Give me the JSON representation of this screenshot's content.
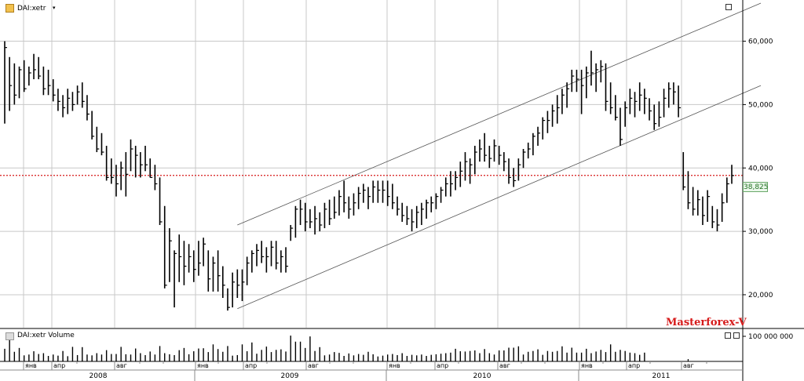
{
  "header": {
    "symbol_label": "DAI:xetr",
    "dropdown_glyph": "▾",
    "volume_label": "DAI:xetr Volume"
  },
  "watermark": "Masterforex-V",
  "last_price_label": "38,825",
  "colors": {
    "price_bar": "#000000",
    "current_price_line": "#d61a1a",
    "channel_line": "#555555",
    "grid": "#c8c8c8",
    "last_price_box": "#eaf7ea",
    "watermark": "#d61a1a"
  },
  "chart_data": {
    "type": "ohlc",
    "y_ticks": [
      "20,000",
      "30,000",
      "40,000",
      "50,000",
      "60,000"
    ],
    "y_tick_values": [
      20000,
      30000,
      40000,
      50000,
      60000
    ],
    "ylim": [
      14800,
      66500
    ],
    "current_price": 38825,
    "volume_axis_label": "100 000 000",
    "x_months": [
      "янв",
      "апр",
      "авг",
      "янв",
      "апр",
      "авг",
      "янв",
      "апр",
      "авг",
      "янв",
      "апр",
      "авг"
    ],
    "x_years": [
      "2008",
      "2009",
      "2010",
      "2011"
    ],
    "volume_series": [
      0.46,
      0.85,
      0.35,
      0.49,
      0.22,
      0.25,
      0.37,
      0.27,
      0.3,
      0.2,
      0.25,
      0.21,
      0.38,
      0.19,
      0.53,
      0.23,
      0.52,
      0.25,
      0.22,
      0.3,
      0.25,
      0.41,
      0.27,
      0.27,
      0.53,
      0.26,
      0.25,
      0.47,
      0.3,
      0.23,
      0.36,
      0.25,
      0.56,
      0.3,
      0.26,
      0.23,
      0.41,
      0.49,
      0.26,
      0.37,
      0.47,
      0.48,
      0.34,
      0.62,
      0.45,
      0.35,
      0.56,
      0.21,
      0.23,
      0.62,
      0.37,
      0.69,
      0.28,
      0.42,
      0.54,
      0.34,
      0.42,
      0.44,
      0.36,
      0.94,
      0.72,
      0.72,
      0.49,
      0.91,
      0.38,
      0.52,
      0.22,
      0.25,
      0.34,
      0.31,
      0.2,
      0.29,
      0.22,
      0.27,
      0.24,
      0.35,
      0.26,
      0.18,
      0.21,
      0.25,
      0.27,
      0.23,
      0.3,
      0.2,
      0.24,
      0.22,
      0.25,
      0.2,
      0.24,
      0.26,
      0.28,
      0.3,
      0.32,
      0.46,
      0.37,
      0.36,
      0.38,
      0.4,
      0.3,
      0.45,
      0.3,
      0.25,
      0.4,
      0.4,
      0.5,
      0.5,
      0.55,
      0.25,
      0.35,
      0.38,
      0.44,
      0.24,
      0.38,
      0.35,
      0.38,
      0.55,
      0.32,
      0.5,
      0.32,
      0.32,
      0.46,
      0.3,
      0.36,
      0.42,
      0.34,
      0.62,
      0.35,
      0.42,
      0.38,
      0.32,
      0.3,
      0.24,
      0.32
    ],
    "channel_lines": [
      {
        "from": [
          "2009-01",
          31000
        ],
        "to": [
          "2011-06",
          66000
        ]
      },
      {
        "from": [
          "2009-01",
          17800
        ],
        "to": [
          "2011-06",
          53000
        ]
      }
    ],
    "channel_pixel_anchor_note": "",
    "ohlc": [
      [
        60000,
        47000,
        59000
      ],
      [
        57500,
        49000,
        53000
      ],
      [
        56500,
        50000,
        51500
      ],
      [
        56000,
        51000,
        55500
      ],
      [
        57000,
        52000,
        52500
      ],
      [
        56000,
        53000,
        55000
      ],
      [
        58000,
        54000,
        55500
      ],
      [
        57500,
        54000,
        54500
      ],
      [
        56000,
        51500,
        52500
      ],
      [
        55500,
        51500,
        53000
      ],
      [
        54000,
        50500,
        51500
      ],
      [
        52500,
        49000,
        50500
      ],
      [
        51500,
        48000,
        49500
      ],
      [
        52500,
        48500,
        51000
      ],
      [
        52000,
        49000,
        50000
      ],
      [
        53000,
        50000,
        52000
      ],
      [
        53500,
        49500,
        50500
      ],
      [
        51500,
        47500,
        48500
      ],
      [
        49000,
        44500,
        45000
      ],
      [
        46500,
        42500,
        43000
      ],
      [
        45500,
        42000,
        42500
      ],
      [
        43500,
        38000,
        38500
      ],
      [
        41500,
        37500,
        38500
      ],
      [
        40500,
        35500,
        37500
      ],
      [
        41000,
        36500,
        40000
      ],
      [
        42500,
        35500,
        39000
      ],
      [
        44500,
        39500,
        43000
      ],
      [
        43500,
        38500,
        42000
      ],
      [
        42500,
        38500,
        40500
      ],
      [
        43500,
        39500,
        40500
      ],
      [
        41500,
        38500,
        38500
      ],
      [
        40500,
        36500,
        37500
      ],
      [
        38500,
        31000,
        31500
      ],
      [
        34000,
        21000,
        21500
      ],
      [
        30500,
        22000,
        28500
      ],
      [
        27000,
        18000,
        26500
      ],
      [
        29500,
        22000,
        26000
      ],
      [
        28500,
        21500,
        24500
      ],
      [
        28000,
        23500,
        26000
      ],
      [
        27000,
        22000,
        24000
      ],
      [
        28500,
        23000,
        25000
      ],
      [
        29000,
        24500,
        28000
      ],
      [
        27000,
        20500,
        22500
      ],
      [
        26000,
        20500,
        25000
      ],
      [
        27000,
        20500,
        23000
      ],
      [
        24500,
        19500,
        21500
      ],
      [
        21000,
        17500,
        18000
      ],
      [
        23500,
        18000,
        22000
      ],
      [
        24000,
        19500,
        21500
      ],
      [
        24000,
        19000,
        22000
      ],
      [
        26000,
        21500,
        25000
      ],
      [
        27000,
        23500,
        26500
      ],
      [
        28000,
        24500,
        27000
      ],
      [
        28500,
        25000,
        26000
      ],
      [
        27500,
        23500,
        26000
      ],
      [
        28500,
        24500,
        27500
      ],
      [
        28500,
        24000,
        25000
      ],
      [
        27000,
        23500,
        26000
      ],
      [
        27500,
        23500,
        24500
      ],
      [
        31000,
        28500,
        30500
      ],
      [
        34000,
        29000,
        33500
      ],
      [
        35000,
        31000,
        33500
      ],
      [
        34500,
        30000,
        31500
      ],
      [
        33500,
        30500,
        31500
      ],
      [
        34000,
        29500,
        32000
      ],
      [
        33000,
        30000,
        31000
      ],
      [
        34500,
        30500,
        33500
      ],
      [
        35000,
        31000,
        32000
      ],
      [
        35500,
        32000,
        33000
      ],
      [
        36500,
        32500,
        35500
      ],
      [
        38000,
        33000,
        34500
      ],
      [
        35500,
        32000,
        33500
      ],
      [
        36000,
        32500,
        34500
      ],
      [
        37000,
        33500,
        36000
      ],
      [
        37500,
        34500,
        36500
      ],
      [
        37000,
        33500,
        35500
      ],
      [
        38000,
        34500,
        37000
      ],
      [
        38000,
        34500,
        36500
      ],
      [
        38000,
        34500,
        36500
      ],
      [
        38000,
        34000,
        35500
      ],
      [
        37500,
        33500,
        34500
      ],
      [
        35500,
        32500,
        33500
      ],
      [
        34500,
        31500,
        32500
      ],
      [
        34000,
        31000,
        32000
      ],
      [
        33500,
        30000,
        31500
      ],
      [
        34000,
        30500,
        33000
      ],
      [
        34500,
        31000,
        33500
      ],
      [
        35000,
        32000,
        34500
      ],
      [
        35500,
        33000,
        34500
      ],
      [
        36000,
        33500,
        35500
      ],
      [
        37000,
        34500,
        36500
      ],
      [
        38500,
        35500,
        37500
      ],
      [
        39500,
        35500,
        37500
      ],
      [
        39500,
        36500,
        38500
      ],
      [
        41000,
        37000,
        39500
      ],
      [
        42500,
        38000,
        41000
      ],
      [
        41500,
        37500,
        40500
      ],
      [
        43500,
        39000,
        42500
      ],
      [
        44500,
        41000,
        43000
      ],
      [
        45500,
        41000,
        42000
      ],
      [
        43500,
        40000,
        41500
      ],
      [
        44500,
        41000,
        43500
      ],
      [
        43500,
        40500,
        42000
      ],
      [
        42500,
        39500,
        41000
      ],
      [
        41500,
        37500,
        38500
      ],
      [
        40000,
        37000,
        38000
      ],
      [
        41500,
        38000,
        40500
      ],
      [
        43000,
        40000,
        42500
      ],
      [
        44000,
        41500,
        43000
      ],
      [
        45500,
        42000,
        45000
      ],
      [
        46500,
        43500,
        45500
      ],
      [
        48000,
        44500,
        47500
      ],
      [
        49000,
        45500,
        47500
      ],
      [
        50000,
        46500,
        49000
      ],
      [
        51500,
        47000,
        49500
      ],
      [
        52500,
        48500,
        51500
      ],
      [
        53500,
        49500,
        52500
      ],
      [
        55500,
        52000,
        54500
      ],
      [
        55500,
        52000,
        54000
      ],
      [
        55500,
        48500,
        53000
      ],
      [
        56000,
        51000,
        55000
      ],
      [
        58500,
        53000,
        55000
      ],
      [
        56500,
        52000,
        55500
      ],
      [
        57000,
        53500,
        56000
      ],
      [
        56500,
        49000,
        50500
      ],
      [
        53500,
        48500,
        49500
      ],
      [
        51500,
        47500,
        48000
      ],
      [
        49500,
        43500,
        44500
      ],
      [
        50500,
        46500,
        49500
      ],
      [
        52500,
        48500,
        51000
      ],
      [
        52000,
        48000,
        50500
      ],
      [
        53500,
        49000,
        51500
      ],
      [
        52500,
        48500,
        51000
      ],
      [
        51000,
        47500,
        49000
      ],
      [
        50000,
        46000,
        47000
      ],
      [
        50500,
        46500,
        48000
      ],
      [
        52500,
        48000,
        51000
      ],
      [
        53500,
        49500,
        52500
      ],
      [
        53500,
        50000,
        52000
      ],
      [
        53000,
        48000,
        49500
      ],
      [
        42500,
        36500,
        37000
      ],
      [
        39500,
        33500,
        34500
      ],
      [
        37000,
        32500,
        33500
      ],
      [
        36500,
        32500,
        35000
      ],
      [
        35500,
        31000,
        32500
      ],
      [
        36500,
        31500,
        35500
      ],
      [
        34000,
        30500,
        31500
      ],
      [
        33500,
        30000,
        31000
      ],
      [
        36000,
        31500,
        34500
      ],
      [
        38500,
        34500,
        37500
      ],
      [
        40500,
        37500,
        38800
      ]
    ]
  }
}
